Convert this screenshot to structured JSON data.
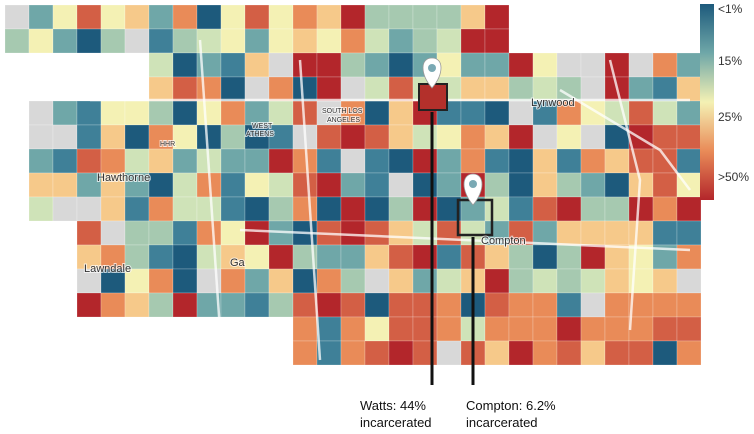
{
  "legend": {
    "labels": [
      "<1%",
      "15%",
      "25%",
      ">50%"
    ]
  },
  "places": [
    "SOUTH LOS",
    "ANGELES",
    "Lynwood",
    "Hawthorne",
    "HHR",
    "WEST",
    "ATHENS",
    "Compton",
    "Lawndale",
    "Ga"
  ],
  "annotations": [
    {
      "lines": [
        "Watts: 44%",
        "incarcerated"
      ]
    },
    {
      "lines": [
        "Compton: 6.2%",
        "incarcerated"
      ]
    }
  ]
}
